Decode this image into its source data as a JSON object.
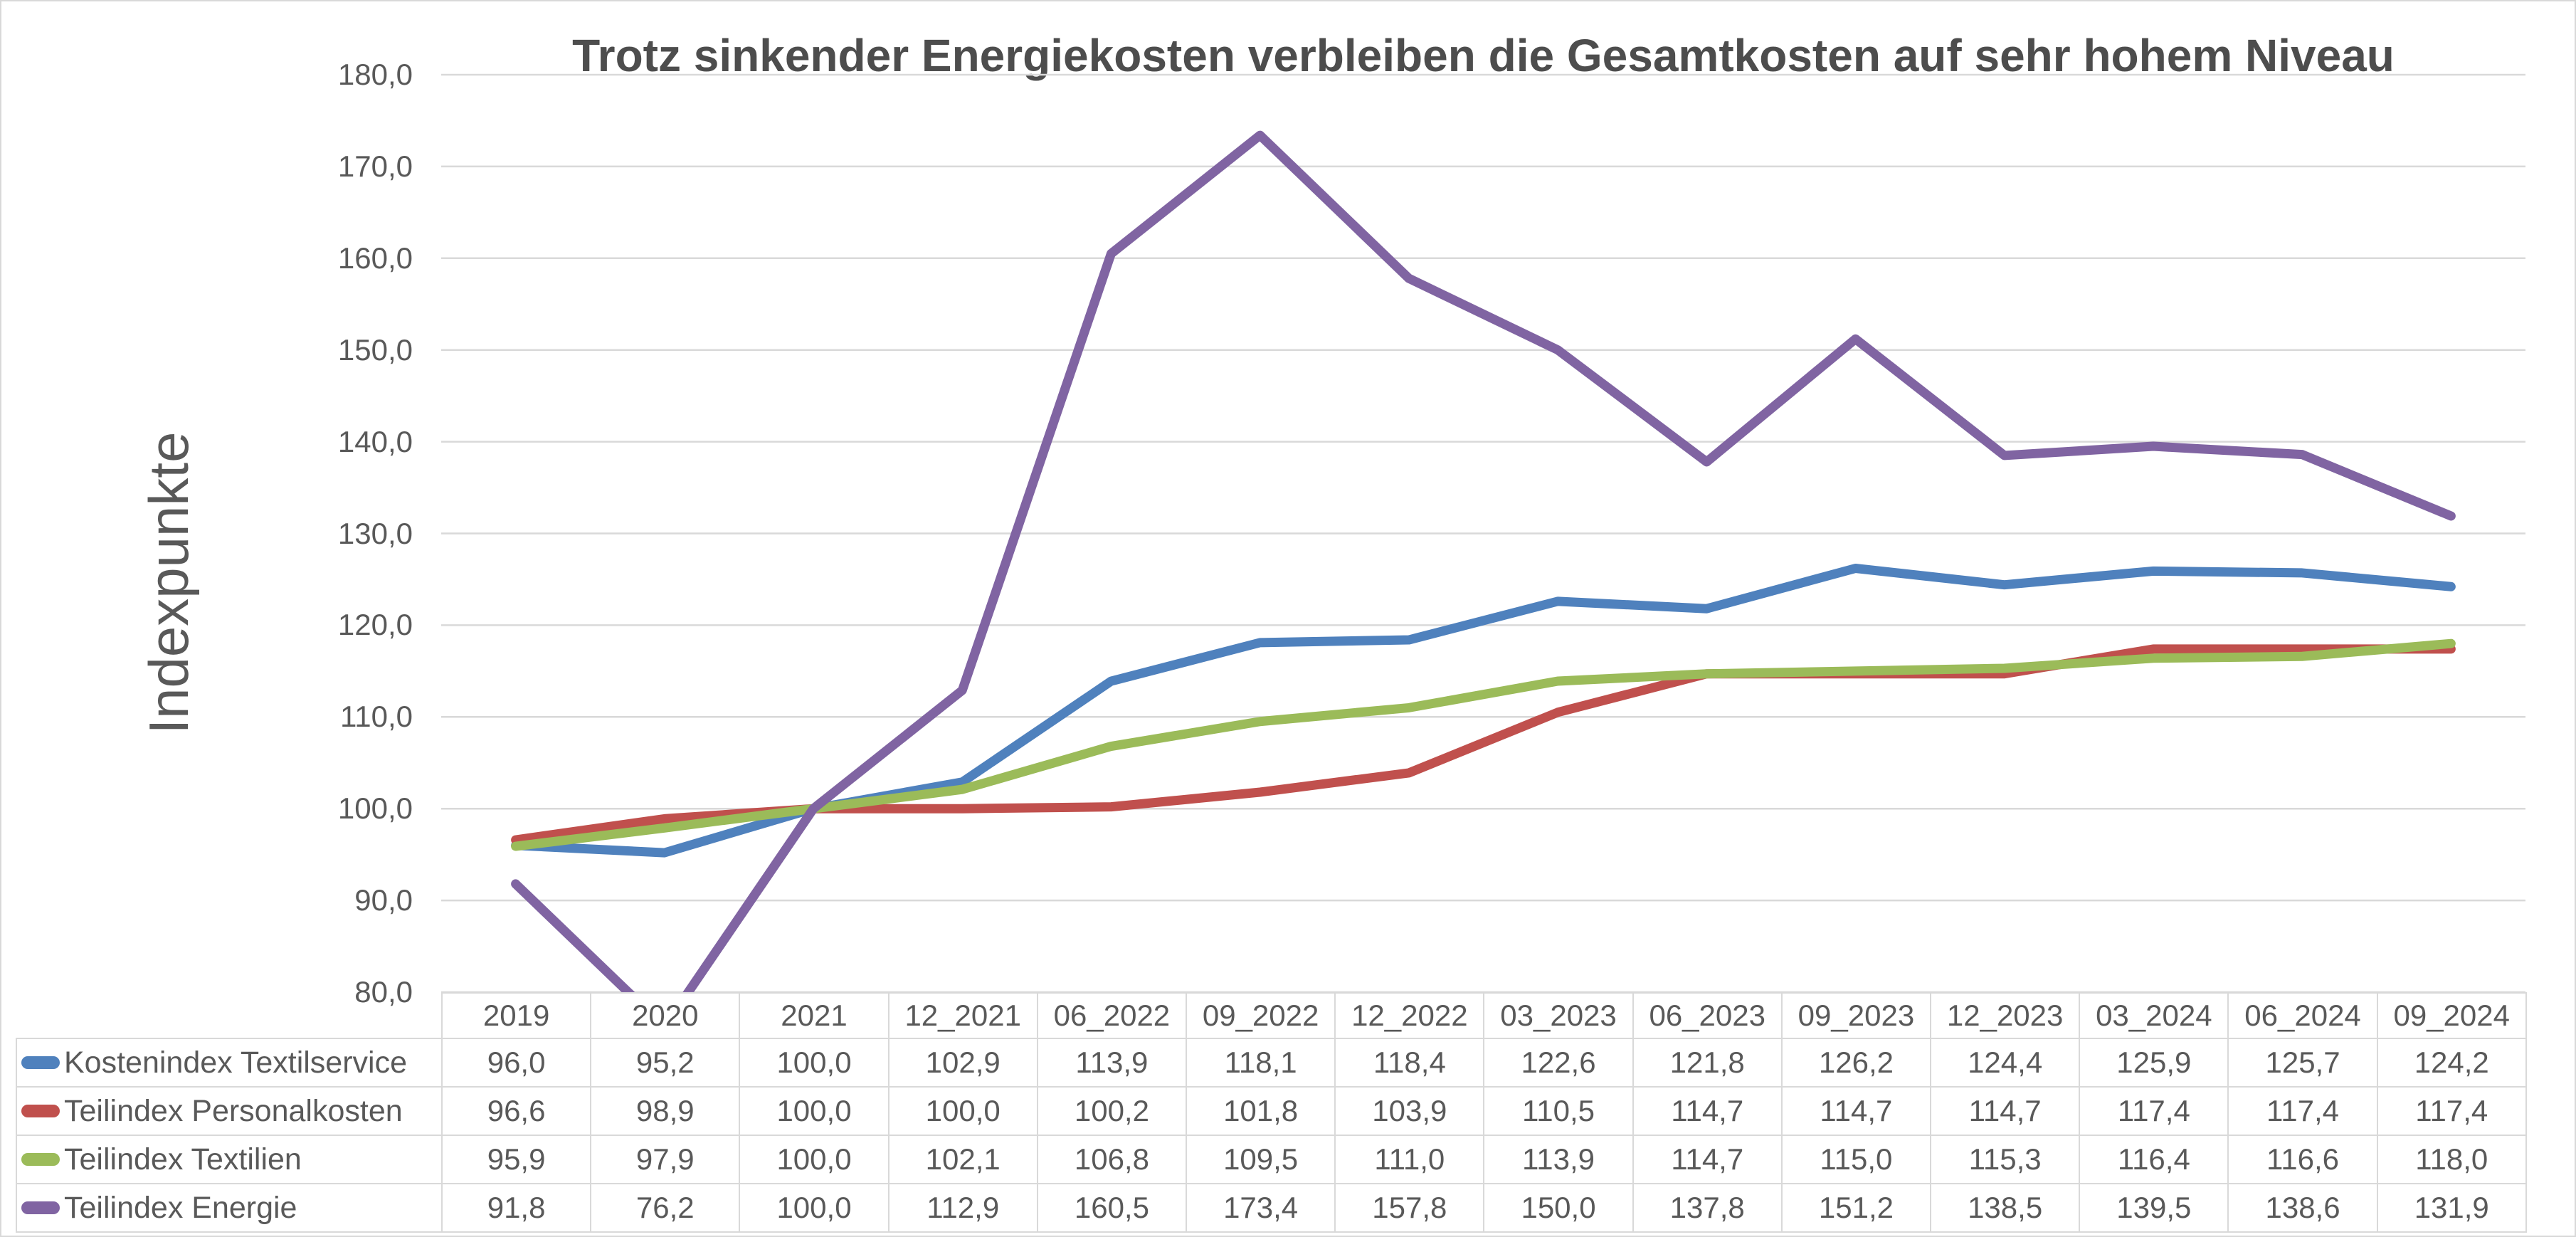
{
  "chart_data": {
    "type": "line",
    "title": "Trotz sinkender Energiekosten verbleiben die Gesamtkosten auf sehr hohem Niveau",
    "ylabel": "Indexpunkte",
    "ylim": [
      80,
      180
    ],
    "ytick_step": 10,
    "decimal_separator": ",",
    "grid": "horizontal",
    "legend_position": "data-table-left",
    "categories": [
      "2019",
      "2020",
      "2021",
      "12_2021",
      "06_2022",
      "09_2022",
      "12_2022",
      "03_2023",
      "06_2023",
      "09_2023",
      "12_2023",
      "03_2024",
      "06_2024",
      "09_2024"
    ],
    "series": [
      {
        "name": "Kostenindex Textilservice",
        "color": "#4F81BD",
        "values": [
          96.0,
          95.2,
          100.0,
          102.9,
          113.9,
          118.1,
          118.4,
          122.6,
          121.8,
          126.2,
          124.4,
          125.9,
          125.7,
          124.2
        ]
      },
      {
        "name": "Teilindex Personalkosten",
        "color": "#C0504D",
        "values": [
          96.6,
          98.9,
          100.0,
          100.0,
          100.2,
          101.8,
          103.9,
          110.5,
          114.7,
          114.7,
          114.7,
          117.4,
          117.4,
          117.4
        ]
      },
      {
        "name": "Teilindex Textilien",
        "color": "#9BBB59",
        "values": [
          95.9,
          97.9,
          100.0,
          102.1,
          106.8,
          109.5,
          111.0,
          113.9,
          114.7,
          115.0,
          115.3,
          116.4,
          116.6,
          118.0
        ]
      },
      {
        "name": "Teilindex Energie",
        "color": "#8064A2",
        "values": [
          91.8,
          76.2,
          100.0,
          112.9,
          160.5,
          173.4,
          157.8,
          150.0,
          137.8,
          151.2,
          138.5,
          139.5,
          138.6,
          131.9
        ]
      }
    ]
  },
  "colors": {
    "text": "#595959",
    "title_text": "#4D4D4D",
    "gridline": "#D9D9D9",
    "chart_border": "#D9D9D9",
    "background": "#FFFFFF"
  }
}
